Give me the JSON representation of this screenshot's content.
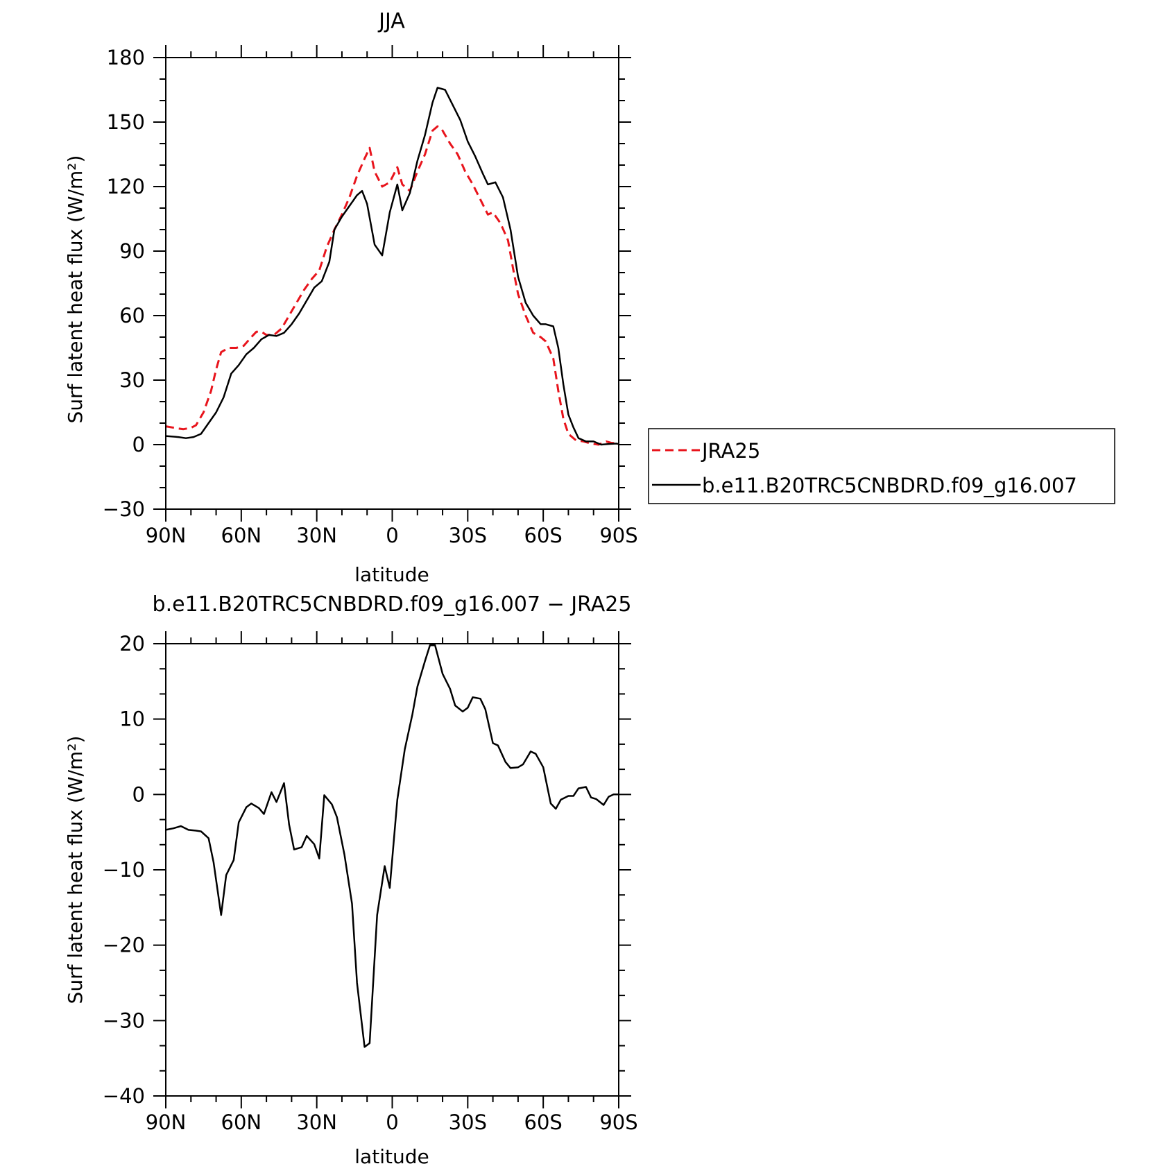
{
  "colors": {
    "jra": "#e8141c",
    "model": "#000000"
  },
  "chart_data": [
    {
      "type": "line",
      "title": "JJA",
      "xlabel": "latitude",
      "ylabel": "Surf latent heat flux (W/m²)",
      "xlim": [
        90,
        -90
      ],
      "ylim": [
        -30,
        180
      ],
      "yticks": [
        {
          "v": 180,
          "label": "180"
        },
        {
          "v": 150,
          "label": "150"
        },
        {
          "v": 120,
          "label": "120"
        },
        {
          "v": 90,
          "label": "90"
        },
        {
          "v": 60,
          "label": "60"
        },
        {
          "v": 30,
          "label": "30"
        },
        {
          "v": 0,
          "label": "0"
        },
        {
          "v": -30,
          "label": "−30"
        }
      ],
      "xticks": [
        {
          "v": 90,
          "label": "90N"
        },
        {
          "v": 60,
          "label": "60N"
        },
        {
          "v": 30,
          "label": "30N"
        },
        {
          "v": 0,
          "label": "0"
        },
        {
          "v": -30,
          "label": "30S"
        },
        {
          "v": -60,
          "label": "60S"
        },
        {
          "v": -90,
          "label": "90S"
        }
      ],
      "legend": "right",
      "series": [
        {
          "name": "JRA25",
          "style": "dashed",
          "points": [
            [
              90,
              8.5
            ],
            [
              85,
              7.5
            ],
            [
              83,
              7.2
            ],
            [
              80,
              7.8
            ],
            [
              78,
              9
            ],
            [
              75,
              15
            ],
            [
              72,
              25
            ],
            [
              70,
              35
            ],
            [
              68,
              43
            ],
            [
              65,
              45
            ],
            [
              62,
              45
            ],
            [
              59,
              46
            ],
            [
              56,
              50
            ],
            [
              54,
              52.5
            ],
            [
              52,
              52.5
            ],
            [
              50,
              51
            ],
            [
              47,
              51
            ],
            [
              44,
              54
            ],
            [
              41,
              60
            ],
            [
              38,
              66
            ],
            [
              35,
              72
            ],
            [
              32,
              77
            ],
            [
              29,
              81
            ],
            [
              26,
              92
            ],
            [
              23,
              100
            ],
            [
              20,
              107
            ],
            [
              17,
              115
            ],
            [
              14,
              125
            ],
            [
              11,
              133
            ],
            [
              9,
              138
            ],
            [
              7,
              127
            ],
            [
              4,
              120
            ],
            [
              1,
              122
            ],
            [
              -2,
              129
            ],
            [
              -4,
              121
            ],
            [
              -7,
              118
            ],
            [
              -10,
              127
            ],
            [
              -13,
              135
            ],
            [
              -16,
              146
            ],
            [
              -18,
              148
            ],
            [
              -20,
              146
            ],
            [
              -23,
              140
            ],
            [
              -26,
              135
            ],
            [
              -29,
              127
            ],
            [
              -32,
              121
            ],
            [
              -35,
              114
            ],
            [
              -38,
              107
            ],
            [
              -40,
              108
            ],
            [
              -43,
              103
            ],
            [
              -46,
              95
            ],
            [
              -48,
              82
            ],
            [
              -50,
              70
            ],
            [
              -53,
              60
            ],
            [
              -56,
              52
            ],
            [
              -59,
              50
            ],
            [
              -61,
              48
            ],
            [
              -64,
              40
            ],
            [
              -66,
              25
            ],
            [
              -68,
              12
            ],
            [
              -70,
              5
            ],
            [
              -73,
              2
            ],
            [
              -76,
              1.5
            ],
            [
              -79,
              0.5
            ],
            [
              -82,
              0
            ],
            [
              -85,
              1.5
            ],
            [
              -87,
              0.8
            ],
            [
              -90,
              0.5
            ]
          ]
        },
        {
          "name": "b.e11.B20TRC5CNBDRD.f09_g16.007",
          "style": "solid",
          "points": [
            [
              90,
              4
            ],
            [
              85,
              3.5
            ],
            [
              82,
              3
            ],
            [
              79,
              3.5
            ],
            [
              76,
              5
            ],
            [
              73,
              10
            ],
            [
              70,
              15
            ],
            [
              67,
              22
            ],
            [
              64,
              33
            ],
            [
              61,
              37
            ],
            [
              58,
              42
            ],
            [
              55,
              45
            ],
            [
              52,
              49
            ],
            [
              49,
              51
            ],
            [
              46,
              50.5
            ],
            [
              43,
              52
            ],
            [
              40,
              56
            ],
            [
              37,
              61
            ],
            [
              34,
              67
            ],
            [
              31,
              73
            ],
            [
              28,
              76
            ],
            [
              25,
              85
            ],
            [
              23,
              100
            ],
            [
              20,
              106
            ],
            [
              17,
              111
            ],
            [
              14,
              116
            ],
            [
              12,
              118
            ],
            [
              10,
              112
            ],
            [
              7,
              93
            ],
            [
              4,
              88
            ],
            [
              1,
              108
            ],
            [
              -2,
              121
            ],
            [
              -4,
              109
            ],
            [
              -7,
              117
            ],
            [
              -10,
              132
            ],
            [
              -13,
              144
            ],
            [
              -16,
              159
            ],
            [
              -18,
              166
            ],
            [
              -21,
              165
            ],
            [
              -24,
              158
            ],
            [
              -27,
              151
            ],
            [
              -30,
              141
            ],
            [
              -33,
              134
            ],
            [
              -36,
              126
            ],
            [
              -38,
              121
            ],
            [
              -41,
              122
            ],
            [
              -44,
              115
            ],
            [
              -47,
              100
            ],
            [
              -50,
              78
            ],
            [
              -53,
              66
            ],
            [
              -56,
              60
            ],
            [
              -59,
              56
            ],
            [
              -61,
              56
            ],
            [
              -64,
              55
            ],
            [
              -66,
              45
            ],
            [
              -68,
              28
            ],
            [
              -70,
              14
            ],
            [
              -72,
              8
            ],
            [
              -74,
              3
            ],
            [
              -77,
              1.5
            ],
            [
              -80,
              1.5
            ],
            [
              -83,
              0
            ],
            [
              -86,
              0.3
            ],
            [
              -89,
              0.5
            ],
            [
              -90,
              0.3
            ]
          ]
        }
      ]
    },
    {
      "type": "line",
      "title": "b.e11.B20TRC5CNBDRD.f09_g16.007 − JRA25",
      "xlabel": "latitude",
      "ylabel": "Surf latent heat flux (W/m²)",
      "xlim": [
        90,
        -90
      ],
      "ylim": [
        -40,
        20
      ],
      "yticks": [
        {
          "v": 20,
          "label": "20"
        },
        {
          "v": 10,
          "label": "10"
        },
        {
          "v": 0,
          "label": "0"
        },
        {
          "v": -10,
          "label": "−10"
        },
        {
          "v": -20,
          "label": "−20"
        },
        {
          "v": -30,
          "label": "−30"
        },
        {
          "v": -40,
          "label": "−40"
        }
      ],
      "xticks": [
        {
          "v": 90,
          "label": "90N"
        },
        {
          "v": 60,
          "label": "60N"
        },
        {
          "v": 30,
          "label": "30N"
        },
        {
          "v": 0,
          "label": "0"
        },
        {
          "v": -30,
          "label": "30S"
        },
        {
          "v": -60,
          "label": "60S"
        },
        {
          "v": -90,
          "label": "90S"
        }
      ],
      "series": [
        {
          "style": "solid",
          "points": [
            [
              90,
              -4.7
            ],
            [
              87,
              -4.5
            ],
            [
              84,
              -4.2
            ],
            [
              81,
              -4.7
            ],
            [
              78,
              -4.8
            ],
            [
              76,
              -4.9
            ],
            [
              73,
              -5.8
            ],
            [
              71,
              -9
            ],
            [
              68,
              -16
            ],
            [
              66,
              -10.7
            ],
            [
              63,
              -8.7
            ],
            [
              61,
              -3.7
            ],
            [
              58,
              -1.7
            ],
            [
              56,
              -1.2
            ],
            [
              53,
              -1.8
            ],
            [
              51,
              -2.6
            ],
            [
              48,
              0.3
            ],
            [
              46,
              -1
            ],
            [
              43,
              1.5
            ],
            [
              41,
              -4
            ],
            [
              39,
              -7.3
            ],
            [
              36,
              -7
            ],
            [
              34,
              -5.5
            ],
            [
              31,
              -6.6
            ],
            [
              29,
              -8.5
            ],
            [
              27,
              -0.1
            ],
            [
              24,
              -1.3
            ],
            [
              22,
              -3
            ],
            [
              19,
              -8
            ],
            [
              16,
              -14.5
            ],
            [
              14,
              -25
            ],
            [
              11,
              -33.5
            ],
            [
              9,
              -33
            ],
            [
              6,
              -16
            ],
            [
              3,
              -9.5
            ],
            [
              1,
              -12.4
            ],
            [
              -2,
              -0.7
            ],
            [
              -5,
              6
            ],
            [
              -8,
              10.6
            ],
            [
              -10,
              14.3
            ],
            [
              -13,
              17.7
            ],
            [
              -15,
              19.8
            ],
            [
              -17,
              19.8
            ],
            [
              -20,
              16
            ],
            [
              -23,
              14
            ],
            [
              -25,
              11.8
            ],
            [
              -28,
              11
            ],
            [
              -30,
              11.5
            ],
            [
              -32,
              12.9
            ],
            [
              -35,
              12.7
            ],
            [
              -37,
              11.3
            ],
            [
              -40,
              6.8
            ],
            [
              -42,
              6.5
            ],
            [
              -45,
              4.3
            ],
            [
              -47,
              3.5
            ],
            [
              -50,
              3.6
            ],
            [
              -52,
              4
            ],
            [
              -55,
              5.7
            ],
            [
              -57,
              5.4
            ],
            [
              -60,
              3.6
            ],
            [
              -63,
              -1.2
            ],
            [
              -65,
              -1.9
            ],
            [
              -67,
              -0.7
            ],
            [
              -70,
              -0.2
            ],
            [
              -72,
              -0.2
            ],
            [
              -74,
              0.8
            ],
            [
              -77,
              1
            ],
            [
              -79,
              -0.4
            ],
            [
              -81,
              -0.6
            ],
            [
              -84,
              -1.4
            ],
            [
              -86,
              -0.3
            ],
            [
              -88,
              0
            ],
            [
              -90,
              0
            ]
          ]
        }
      ]
    }
  ]
}
